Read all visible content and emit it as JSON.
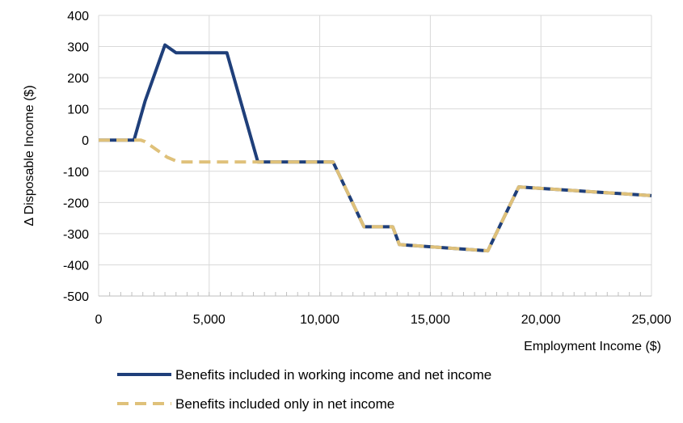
{
  "chart_data": {
    "type": "line",
    "title": "",
    "xlabel": "Employment Income ($)",
    "ylabel": "Δ Disposable Income ($)",
    "xlim": [
      0,
      25000
    ],
    "ylim": [
      -500,
      400
    ],
    "x_ticks": [
      0,
      5000,
      10000,
      15000,
      20000,
      25000
    ],
    "x_tick_labels": [
      "0",
      "5,000",
      "10,000",
      "15,000",
      "20,000",
      "25,000"
    ],
    "y_ticks": [
      400,
      300,
      200,
      100,
      0,
      -100,
      -200,
      -300,
      -400,
      -500
    ],
    "y_tick_labels": [
      "400",
      "300",
      "200",
      "100",
      "0",
      "-100",
      "-200",
      "-300",
      "-400",
      "-500"
    ],
    "x_minor_tick_step": 500,
    "grid": true,
    "legend_position": "bottom",
    "series": [
      {
        "name": "Benefits included in working income and net income",
        "color": "#1f3f7a",
        "style": "solid",
        "x": [
          0,
          1600,
          2100,
          3000,
          3500,
          5800,
          7200,
          10600,
          12000,
          13300,
          13600,
          17600,
          19000,
          25000
        ],
        "y": [
          0,
          0,
          125,
          305,
          280,
          280,
          -70,
          -70,
          -278,
          -278,
          -335,
          -355,
          -150,
          -178
        ]
      },
      {
        "name": "Benefits included only in net income",
        "color": "#dfc17a",
        "style": "dashed",
        "x": [
          0,
          1900,
          2100,
          3100,
          3600,
          5000,
          7200,
          10600,
          12000,
          13300,
          13600,
          17600,
          19000,
          25000
        ],
        "y": [
          0,
          0,
          -5,
          -55,
          -70,
          -70,
          -70,
          -70,
          -278,
          -278,
          -335,
          -355,
          -150,
          -178
        ]
      }
    ]
  }
}
